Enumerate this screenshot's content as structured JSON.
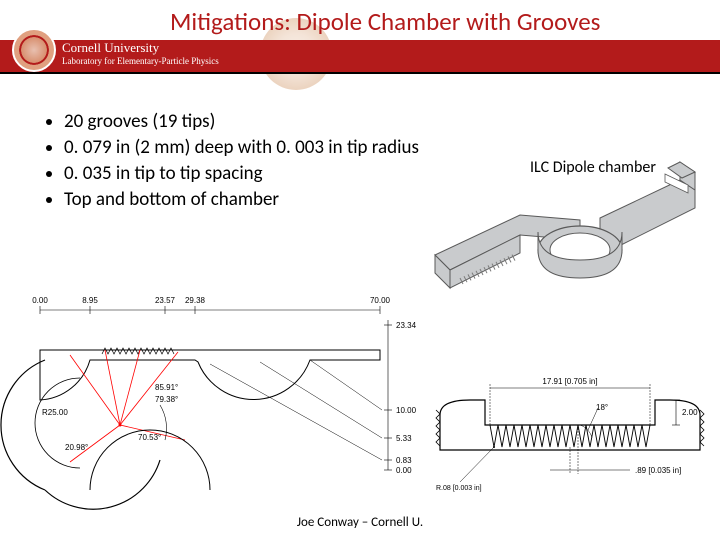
{
  "header": {
    "title": "Mitigations: Dipole Chamber with Grooves",
    "university_line1": "Cornell University",
    "university_line2": "Laboratory for Elementary-Particle Physics"
  },
  "bullets": [
    "20 grooves (19 tips)",
    "0. 079 in (2 mm) deep with 0. 003 in tip radius",
    "0. 035 in tip to tip spacing",
    "Top and bottom of chamber"
  ],
  "label_ilc": "ILC Dipole chamber",
  "footer": "Joe Conway – Cornell U.",
  "chamber3d": {
    "body_fill": "#c9cbcd",
    "body_stroke": "#595959",
    "groove_fill": "#7b7b7b"
  },
  "drawing_left": {
    "stroke": "#000000",
    "red": "#ff0000",
    "dims_top": [
      "0.00",
      "8.95",
      "23.57",
      "29.38",
      "70.00"
    ],
    "dims_right": [
      "23.34",
      "10.00",
      "5.33",
      "0.83",
      "0.00"
    ],
    "r_label": "R25.00",
    "ang1": "85.91°",
    "ang2": "79.38°",
    "ang3": "70.53°",
    "val_bl": "20.98°"
  },
  "drawing_right": {
    "stroke": "#000000",
    "width_label": "17.91 [0.705 in]",
    "height_label": "2.00",
    "angle_label": "18°",
    "depth_label": ".89 [0.035 in]",
    "r_label": "R.08 [0.003 in]",
    "groove_count": 20
  }
}
